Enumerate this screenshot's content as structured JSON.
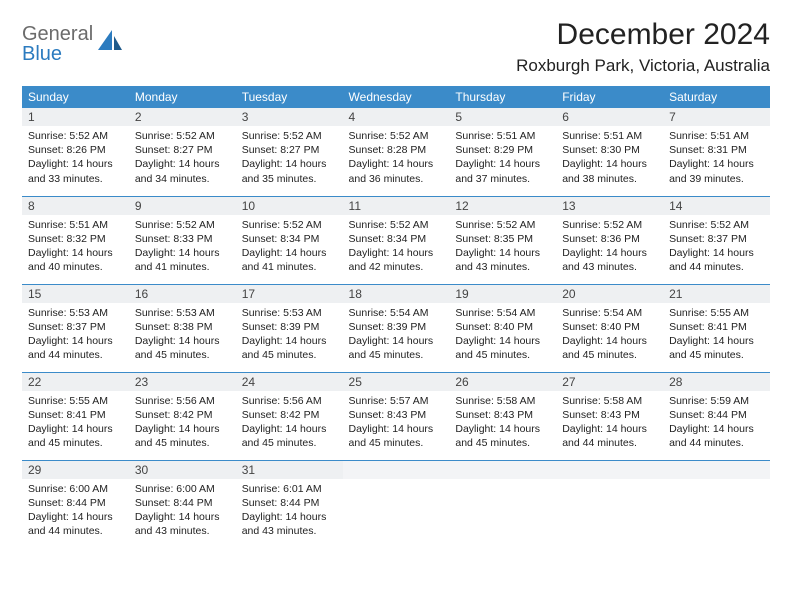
{
  "logo": {
    "line1": "General",
    "line2": "Blue"
  },
  "title": "December 2024",
  "location": "Roxburgh Park, Victoria, Australia",
  "colors": {
    "header_bg": "#3b8bc9",
    "header_fg": "#ffffff",
    "daynum_bg": "#eef0f2",
    "cell_border": "#3b8bc9",
    "logo_gray": "#6b6b6b",
    "logo_blue": "#2b7bbf"
  },
  "weekdays": [
    "Sunday",
    "Monday",
    "Tuesday",
    "Wednesday",
    "Thursday",
    "Friday",
    "Saturday"
  ],
  "days": [
    {
      "n": "1",
      "sunrise": "5:52 AM",
      "sunset": "8:26 PM",
      "daylight": "14 hours and 33 minutes."
    },
    {
      "n": "2",
      "sunrise": "5:52 AM",
      "sunset": "8:27 PM",
      "daylight": "14 hours and 34 minutes."
    },
    {
      "n": "3",
      "sunrise": "5:52 AM",
      "sunset": "8:27 PM",
      "daylight": "14 hours and 35 minutes."
    },
    {
      "n": "4",
      "sunrise": "5:52 AM",
      "sunset": "8:28 PM",
      "daylight": "14 hours and 36 minutes."
    },
    {
      "n": "5",
      "sunrise": "5:51 AM",
      "sunset": "8:29 PM",
      "daylight": "14 hours and 37 minutes."
    },
    {
      "n": "6",
      "sunrise": "5:51 AM",
      "sunset": "8:30 PM",
      "daylight": "14 hours and 38 minutes."
    },
    {
      "n": "7",
      "sunrise": "5:51 AM",
      "sunset": "8:31 PM",
      "daylight": "14 hours and 39 minutes."
    },
    {
      "n": "8",
      "sunrise": "5:51 AM",
      "sunset": "8:32 PM",
      "daylight": "14 hours and 40 minutes."
    },
    {
      "n": "9",
      "sunrise": "5:52 AM",
      "sunset": "8:33 PM",
      "daylight": "14 hours and 41 minutes."
    },
    {
      "n": "10",
      "sunrise": "5:52 AM",
      "sunset": "8:34 PM",
      "daylight": "14 hours and 41 minutes."
    },
    {
      "n": "11",
      "sunrise": "5:52 AM",
      "sunset": "8:34 PM",
      "daylight": "14 hours and 42 minutes."
    },
    {
      "n": "12",
      "sunrise": "5:52 AM",
      "sunset": "8:35 PM",
      "daylight": "14 hours and 43 minutes."
    },
    {
      "n": "13",
      "sunrise": "5:52 AM",
      "sunset": "8:36 PM",
      "daylight": "14 hours and 43 minutes."
    },
    {
      "n": "14",
      "sunrise": "5:52 AM",
      "sunset": "8:37 PM",
      "daylight": "14 hours and 44 minutes."
    },
    {
      "n": "15",
      "sunrise": "5:53 AM",
      "sunset": "8:37 PM",
      "daylight": "14 hours and 44 minutes."
    },
    {
      "n": "16",
      "sunrise": "5:53 AM",
      "sunset": "8:38 PM",
      "daylight": "14 hours and 45 minutes."
    },
    {
      "n": "17",
      "sunrise": "5:53 AM",
      "sunset": "8:39 PM",
      "daylight": "14 hours and 45 minutes."
    },
    {
      "n": "18",
      "sunrise": "5:54 AM",
      "sunset": "8:39 PM",
      "daylight": "14 hours and 45 minutes."
    },
    {
      "n": "19",
      "sunrise": "5:54 AM",
      "sunset": "8:40 PM",
      "daylight": "14 hours and 45 minutes."
    },
    {
      "n": "20",
      "sunrise": "5:54 AM",
      "sunset": "8:40 PM",
      "daylight": "14 hours and 45 minutes."
    },
    {
      "n": "21",
      "sunrise": "5:55 AM",
      "sunset": "8:41 PM",
      "daylight": "14 hours and 45 minutes."
    },
    {
      "n": "22",
      "sunrise": "5:55 AM",
      "sunset": "8:41 PM",
      "daylight": "14 hours and 45 minutes."
    },
    {
      "n": "23",
      "sunrise": "5:56 AM",
      "sunset": "8:42 PM",
      "daylight": "14 hours and 45 minutes."
    },
    {
      "n": "24",
      "sunrise": "5:56 AM",
      "sunset": "8:42 PM",
      "daylight": "14 hours and 45 minutes."
    },
    {
      "n": "25",
      "sunrise": "5:57 AM",
      "sunset": "8:43 PM",
      "daylight": "14 hours and 45 minutes."
    },
    {
      "n": "26",
      "sunrise": "5:58 AM",
      "sunset": "8:43 PM",
      "daylight": "14 hours and 45 minutes."
    },
    {
      "n": "27",
      "sunrise": "5:58 AM",
      "sunset": "8:43 PM",
      "daylight": "14 hours and 44 minutes."
    },
    {
      "n": "28",
      "sunrise": "5:59 AM",
      "sunset": "8:44 PM",
      "daylight": "14 hours and 44 minutes."
    },
    {
      "n": "29",
      "sunrise": "6:00 AM",
      "sunset": "8:44 PM",
      "daylight": "14 hours and 44 minutes."
    },
    {
      "n": "30",
      "sunrise": "6:00 AM",
      "sunset": "8:44 PM",
      "daylight": "14 hours and 43 minutes."
    },
    {
      "n": "31",
      "sunrise": "6:01 AM",
      "sunset": "8:44 PM",
      "daylight": "14 hours and 43 minutes."
    }
  ],
  "labels": {
    "sunrise": "Sunrise:",
    "sunset": "Sunset:",
    "daylight": "Daylight:"
  }
}
